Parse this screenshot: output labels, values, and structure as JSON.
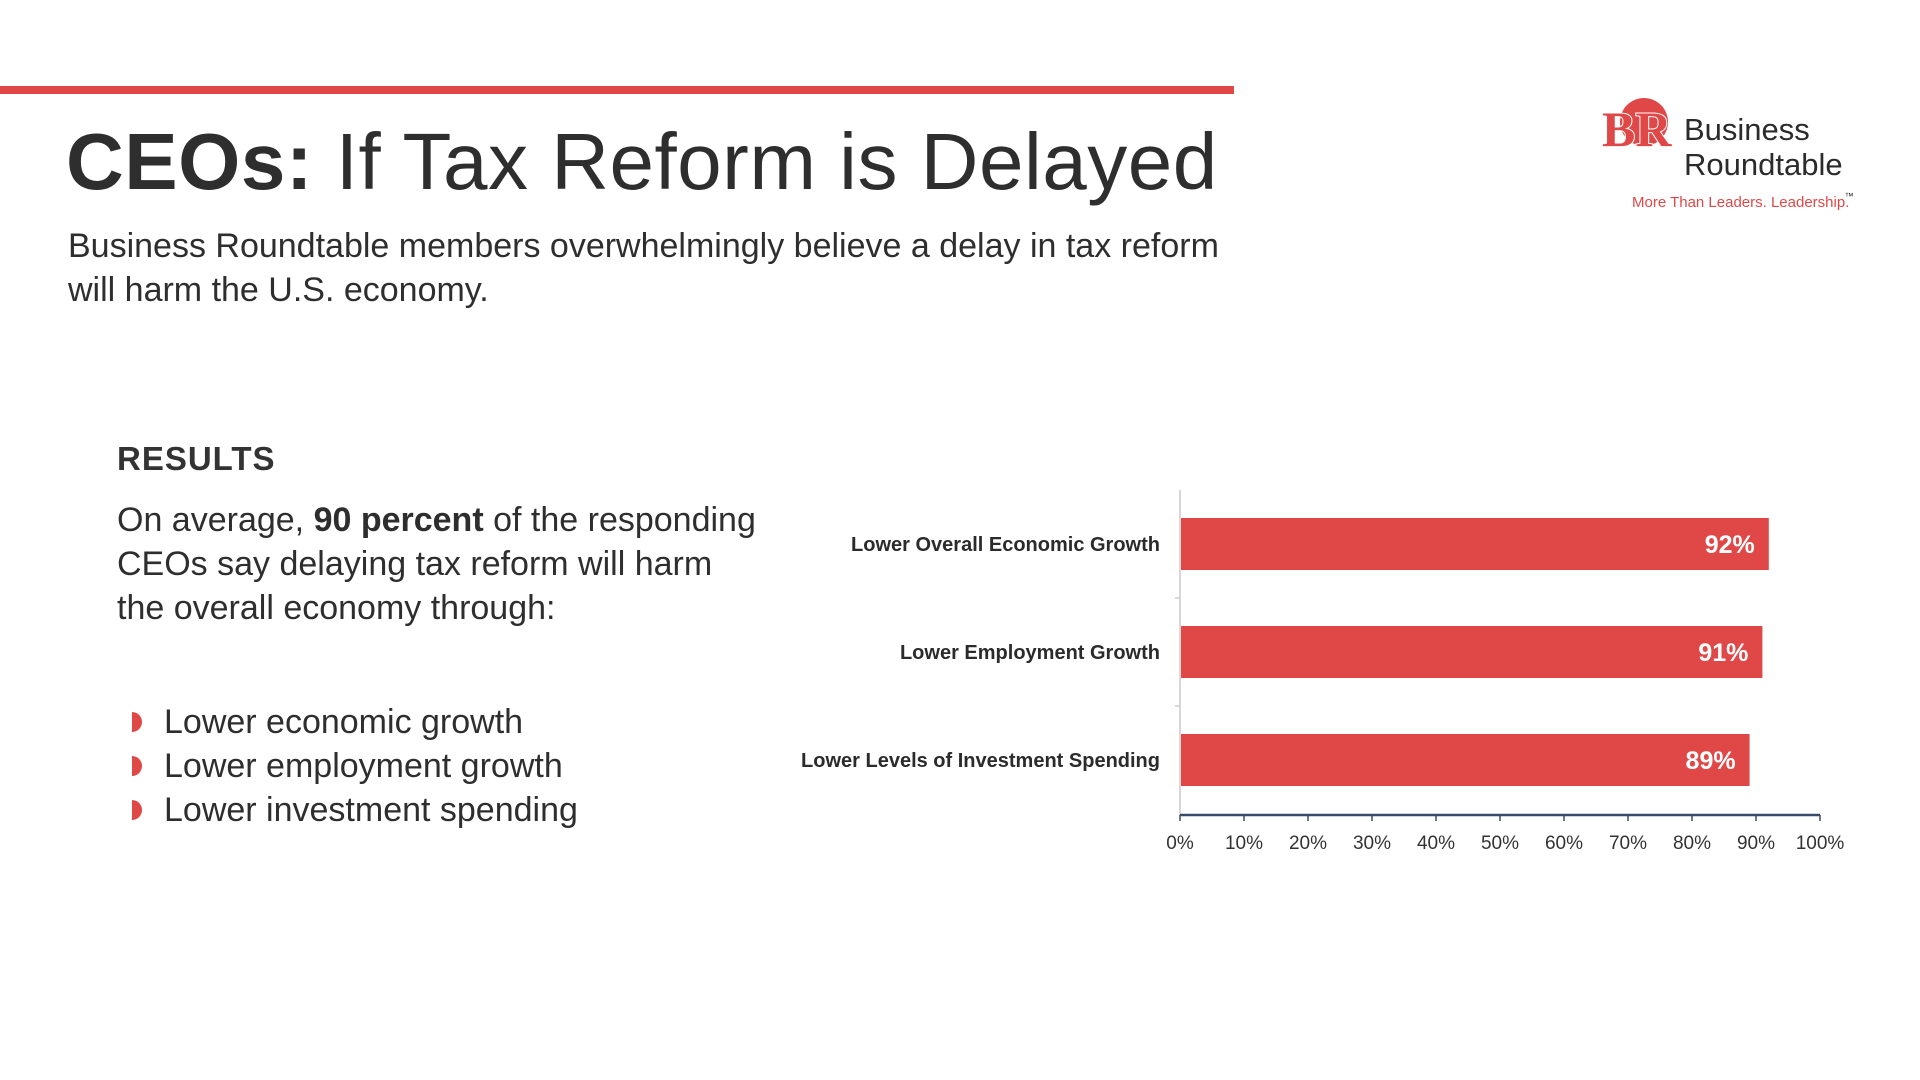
{
  "header": {
    "title_bold": "CEOs:",
    "title_rest": "If Tax Reform is Delayed",
    "subtitle": "Business Roundtable members overwhelmingly believe a delay in tax reform will harm the U.S. economy."
  },
  "logo": {
    "line1": "Business",
    "line2": "Roundtable",
    "tm": "™",
    "tagline": "More Than Leaders. Leadership.",
    "monogram": "BR",
    "color": "#e04848"
  },
  "results": {
    "heading": "RESULTS",
    "text_before": "On average, ",
    "text_bold": "90 percent",
    "text_after": " of the responding CEOs say delaying tax reform will harm the overall economy through:",
    "bullets": [
      "Lower economic growth",
      "Lower employment growth",
      "Lower investment spending"
    ]
  },
  "chart_data": {
    "type": "bar",
    "orientation": "horizontal",
    "categories": [
      "Lower Overall Economic Growth",
      "Lower Employment Growth",
      "Lower Levels of Investment Spending"
    ],
    "values": [
      92,
      91,
      89
    ],
    "data_labels": [
      "92%",
      "91%",
      "89%"
    ],
    "xlim": [
      0,
      100
    ],
    "x_ticks": [
      "0%",
      "10%",
      "20%",
      "30%",
      "40%",
      "50%",
      "60%",
      "70%",
      "80%",
      "90%",
      "100%"
    ],
    "grid": false,
    "bar_color": "#e04848",
    "title": "",
    "xlabel": "",
    "ylabel": ""
  }
}
